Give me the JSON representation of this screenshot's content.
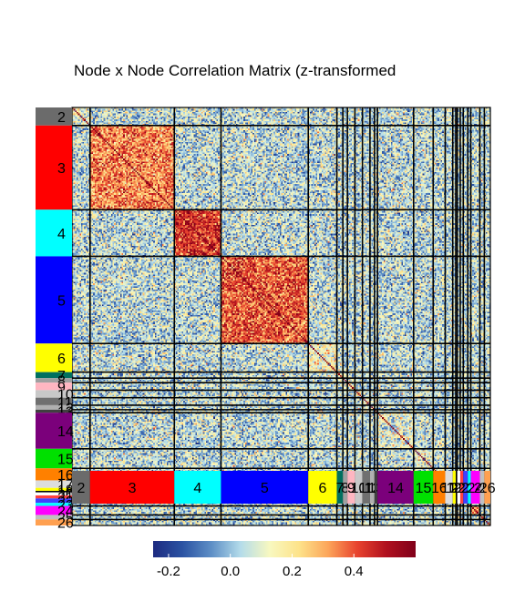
{
  "chart_data": {
    "type": "heatmap",
    "title": "Node x Node Correlation Matrix (z-transformed",
    "networks": [
      {
        "label": "2",
        "nodes": 12,
        "color": "#6b6b6b"
      },
      {
        "label": "3",
        "nodes": 56,
        "color": "#ff0000"
      },
      {
        "label": "4",
        "nodes": 31,
        "color": "#00ffff"
      },
      {
        "label": "5",
        "nodes": 58,
        "color": "#0000ff"
      },
      {
        "label": "6",
        "nodes": 19,
        "color": "#ffff00"
      },
      {
        "label": "7",
        "nodes": 4,
        "color": "#00705f"
      },
      {
        "label": "8",
        "nodes": 3,
        "color": "#a0a0a0"
      },
      {
        "label": "9",
        "nodes": 5,
        "color": "#ffb6c1"
      },
      {
        "label": "10",
        "nodes": 5,
        "color": "#c8c8c8"
      },
      {
        "label": "11",
        "nodes": 5,
        "color": "#707070"
      },
      {
        "label": "12",
        "nodes": 3,
        "color": "#b0b0b0"
      },
      {
        "label": "13",
        "nodes": 2,
        "color": "#404040"
      },
      {
        "label": "14",
        "nodes": 24,
        "color": "#7b007b"
      },
      {
        "label": "15",
        "nodes": 13,
        "color": "#00e000"
      },
      {
        "label": "16",
        "nodes": 8,
        "color": "#ff8000"
      },
      {
        "label": "17",
        "nodes": 5,
        "color": "#dddddd"
      },
      {
        "label": "18",
        "nodes": 2,
        "color": "#ffff00"
      },
      {
        "label": "19",
        "nodes": 1,
        "color": "#000000"
      },
      {
        "label": "20",
        "nodes": 2,
        "color": "#ffffff"
      },
      {
        "label": "21",
        "nodes": 2,
        "color": "#ff4040"
      },
      {
        "label": "22",
        "nodes": 3,
        "color": "#4040ff"
      },
      {
        "label": "23",
        "nodes": 2,
        "color": "#00ffff"
      },
      {
        "label": "24",
        "nodes": 6,
        "color": "#ff00ff"
      },
      {
        "label": "25",
        "nodes": 3,
        "color": "#c0c0c0"
      },
      {
        "label": "26",
        "nodes": 4,
        "color": "#ffa050"
      }
    ],
    "colorbar": {
      "min": -0.25,
      "max": 0.6,
      "ticks": [
        -0.2,
        0.0,
        0.2,
        0.4
      ],
      "tick_labels": [
        "-0.2",
        "0.0",
        "0.2",
        "0.4"
      ],
      "colors": [
        "#1c2a80",
        "#2b53a3",
        "#5e8fc6",
        "#b4dcea",
        "#f8f8c0",
        "#fde38a",
        "#fca55a",
        "#e8432e",
        "#b0101e",
        "#80001a"
      ]
    },
    "within_network_mean": {
      "3": 0.35,
      "4": 0.45,
      "5": 0.4,
      "6": 0.15,
      "14": 0.1,
      "15": 0.1,
      "16": 0.15,
      "24": 0.3,
      "25": 0.2
    },
    "between_network_mean": 0.05
  }
}
